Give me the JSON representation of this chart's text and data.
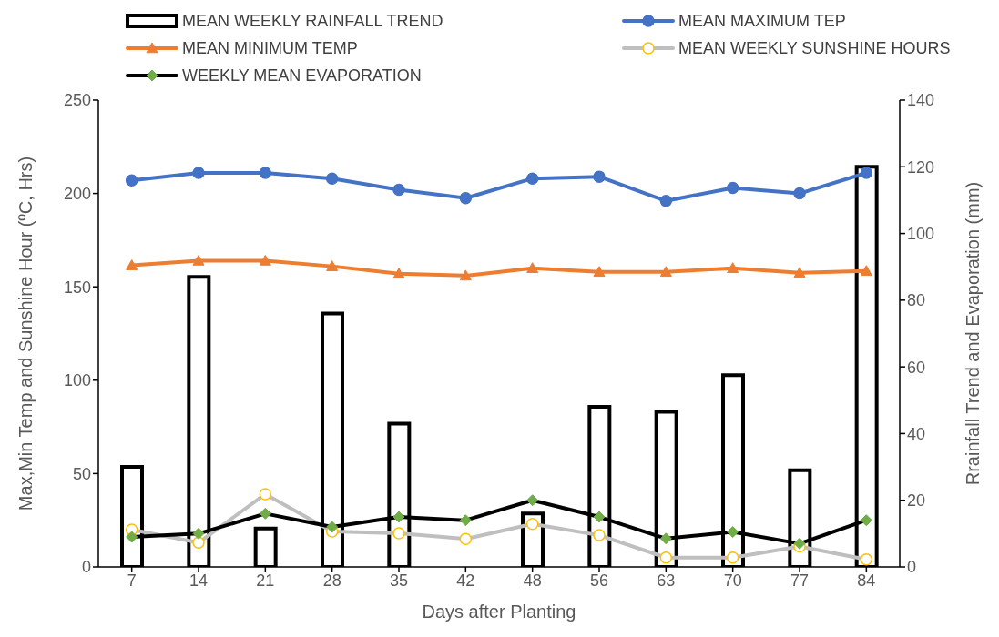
{
  "chart_data": {
    "type": "line",
    "xlabel": "Days after Planting",
    "ylabel": "Max,Min Temp and Sunshine Hour (ºC, Hrs)",
    "y2label": "Rrainfall Trend and Evaporation (mm)",
    "categories": [
      "7",
      "14",
      "21",
      "28",
      "35",
      "42",
      "48",
      "56",
      "63",
      "70",
      "77",
      "84"
    ],
    "series": [
      {
        "name": "MEAN WEEKLY RAINFALL TREND",
        "type": "bar",
        "axis": "y2",
        "color": "#000000",
        "values": [
          30,
          87,
          11.5,
          76,
          43,
          null,
          16,
          48,
          46.5,
          57.5,
          29,
          120
        ]
      },
      {
        "name": "MEAN MAXIMUM TEP",
        "color": "#4472c4",
        "marker": "circle",
        "values": [
          207,
          211,
          211,
          208,
          202,
          197.5,
          208,
          209,
          196,
          203,
          200,
          211
        ]
      },
      {
        "name": "MEAN MINIMUM TEMP",
        "color": "#ed7d31",
        "marker": "triangle",
        "values": [
          161.5,
          164,
          164,
          161,
          157,
          156,
          160,
          158,
          158,
          160,
          157.5,
          158.5
        ]
      },
      {
        "name": "MEAN WEEKLY SUNSHINE HOURS",
        "color": "#bfbfbf",
        "marker": "circle",
        "values": [
          20,
          13,
          39,
          19,
          18,
          15,
          23,
          17,
          5,
          5,
          11,
          4
        ]
      },
      {
        "name": "WEEKLY MEAN EVAPORATION",
        "axis": "y2",
        "color": "#000000",
        "marker": "diamond",
        "values": [
          9,
          10,
          16,
          12,
          15,
          14,
          20,
          15,
          8.5,
          10.5,
          7,
          14
        ]
      }
    ],
    "ylim": [
      0,
      250
    ],
    "yticks": [
      0,
      50,
      100,
      150,
      200,
      250
    ],
    "y2lim": [
      0,
      140
    ],
    "y2ticks": [
      0,
      20,
      40,
      60,
      80,
      100,
      120,
      140
    ],
    "legend": "top"
  }
}
